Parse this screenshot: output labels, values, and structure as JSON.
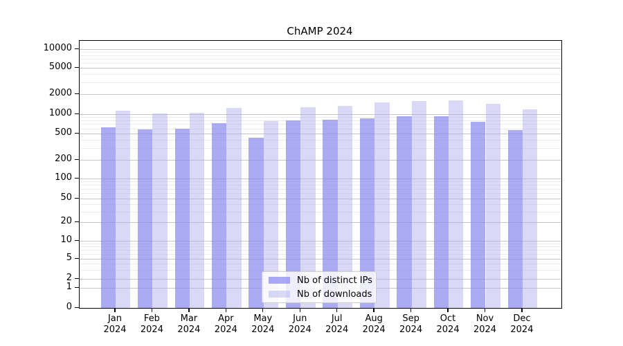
{
  "figure": {
    "title": "ChAMP 2024"
  },
  "colors": {
    "ips_bar": "#8888ee",
    "ips_bar_alpha": 0.7,
    "downloads_bar": "#aaaaee",
    "downloads_bar_alpha": 0.45,
    "grid_major": "#c6c6c6",
    "grid_minor": "#ebebeb",
    "spine": "#000000",
    "text": "#000000",
    "legend_border": "#cccccc"
  },
  "legend": {
    "items": [
      "Nb of distinct IPs",
      "Nb of downloads"
    ]
  },
  "chart_data": {
    "type": "bar",
    "title": "ChAMP 2024",
    "xlabel": "",
    "ylabel": "",
    "yscale": "symlog",
    "ylim": [
      0,
      13000
    ],
    "grid": "both",
    "legend_position": "lower center",
    "yticks": [
      0,
      1,
      2,
      5,
      10,
      20,
      50,
      100,
      200,
      500,
      1000,
      2000,
      5000,
      10000
    ],
    "categories": [
      "Jan 2024",
      "Feb 2024",
      "Mar 2024",
      "Apr 2024",
      "May 2024",
      "Jun 2024",
      "Jul 2024",
      "Aug 2024",
      "Sep 2024",
      "Oct 2024",
      "Nov 2024",
      "Dec 2024"
    ],
    "series": [
      {
        "name": "Nb of distinct IPs",
        "values": [
          620,
          575,
          590,
          730,
          435,
          795,
          830,
          870,
          920,
          935,
          770,
          560
        ]
      },
      {
        "name": "Nb of downloads",
        "values": [
          1120,
          1030,
          1040,
          1250,
          775,
          1270,
          1320,
          1510,
          1570,
          1610,
          1420,
          1190
        ]
      }
    ]
  }
}
